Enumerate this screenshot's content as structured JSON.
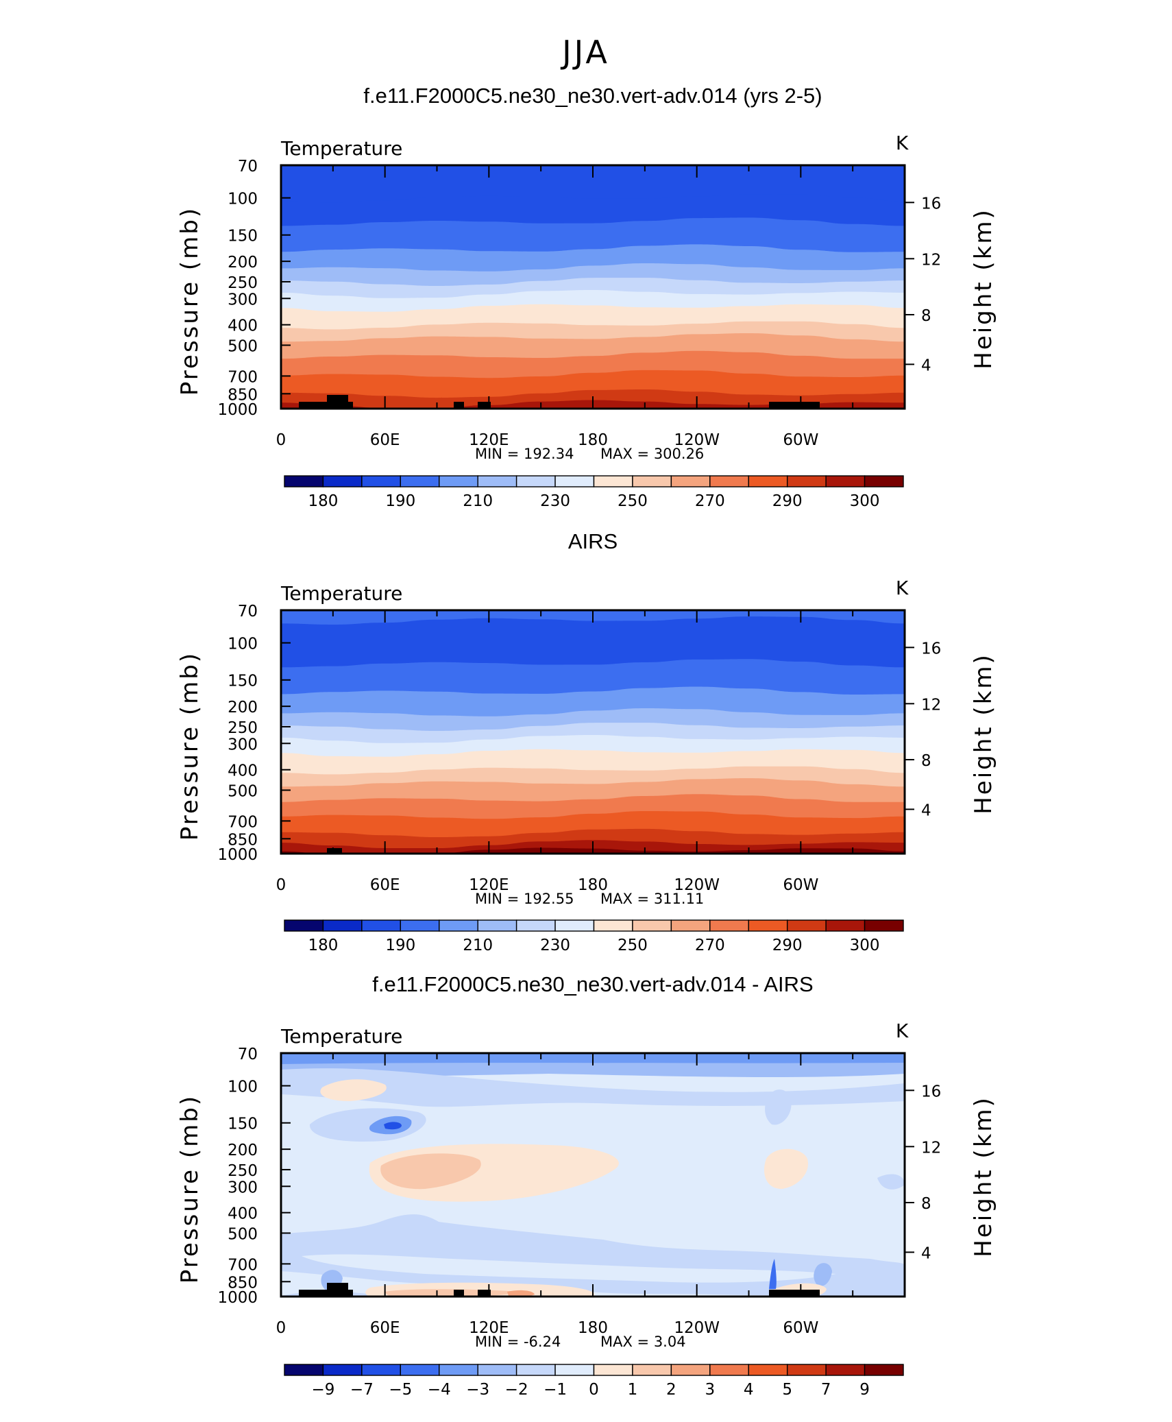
{
  "figure": {
    "season": "JJA"
  },
  "levels": [
    "70",
    "100",
    "150",
    "200",
    "250",
    "300",
    "400",
    "500",
    "700",
    "850",
    "1000"
  ],
  "height_ticks": [
    "16",
    "12",
    "8",
    "4"
  ],
  "lon_ticks": [
    "0",
    "60E",
    "120E",
    "180",
    "120W",
    "60W"
  ],
  "chart_data": [
    {
      "type": "heatmap",
      "title": "f.e11.F2000C5.ne30_ne30.vert-adv.014 (yrs 2-5)",
      "variable": "Temperature",
      "units": "K",
      "ylabel": "Pressure (mb)",
      "y2label": "Height (km)",
      "x": "longitude 0-360",
      "min_label": "MIN = 192.34",
      "max_label": "MAX = 300.26",
      "min": 192.34,
      "max": 300.26,
      "colorbar": [
        "180",
        "190",
        "210",
        "230",
        "250",
        "270",
        "290",
        "300"
      ],
      "colors": [
        "#05056e",
        "#0a2ac8",
        "#2150e6",
        "#3c6ef0",
        "#6e9bf5",
        "#9ebcf7",
        "#c6d8fa",
        "#e0ecfc",
        "#fce6d4",
        "#f8c8ac",
        "#f4a47e",
        "#f07a4e",
        "#ec5a24",
        "#d03a14",
        "#a8160a",
        "#780000"
      ],
      "profile": [
        {
          "p": "70",
          "c": 2
        },
        {
          "p": "100",
          "c": 2
        },
        {
          "p": "130",
          "c": 3
        },
        {
          "p": "175",
          "c": 4
        },
        {
          "p": "215",
          "c": 5
        },
        {
          "p": "250",
          "c": 6
        },
        {
          "p": "285",
          "c": 7
        },
        {
          "p": "330",
          "c": 8
        },
        {
          "p": "400",
          "c": 9
        },
        {
          "p": "460",
          "c": 10
        },
        {
          "p": "560",
          "c": 11
        },
        {
          "p": "690",
          "c": 12
        },
        {
          "p": "850",
          "c": 13
        },
        {
          "p": "950",
          "c": 14
        }
      ]
    },
    {
      "type": "heatmap",
      "title": "AIRS",
      "variable": "Temperature",
      "units": "K",
      "ylabel": "Pressure (mb)",
      "y2label": "Height (km)",
      "min_label": "MIN = 192.55",
      "max_label": "MAX = 311.11",
      "min": 192.55,
      "max": 311.11,
      "colorbar": [
        "180",
        "190",
        "210",
        "230",
        "250",
        "270",
        "290",
        "300"
      ],
      "colors": [
        "#05056e",
        "#0a2ac8",
        "#2150e6",
        "#3c6ef0",
        "#6e9bf5",
        "#9ebcf7",
        "#c6d8fa",
        "#e0ecfc",
        "#fce6d4",
        "#f8c8ac",
        "#f4a47e",
        "#f07a4e",
        "#ec5a24",
        "#d03a14",
        "#a8160a",
        "#780000"
      ],
      "profile": [
        {
          "p": "70",
          "c": 3
        },
        {
          "p": "78",
          "c": 2
        },
        {
          "p": "125",
          "c": 3
        },
        {
          "p": "170",
          "c": 4
        },
        {
          "p": "215",
          "c": 5
        },
        {
          "p": "250",
          "c": 6
        },
        {
          "p": "285",
          "c": 7
        },
        {
          "p": "330",
          "c": 8
        },
        {
          "p": "400",
          "c": 9
        },
        {
          "p": "460",
          "c": 10
        },
        {
          "p": "550",
          "c": 11
        },
        {
          "p": "660",
          "c": 12
        },
        {
          "p": "800",
          "c": 13
        },
        {
          "p": "900",
          "c": 14
        },
        {
          "p": "970",
          "c": 15
        }
      ]
    },
    {
      "type": "heatmap",
      "title": "f.e11.F2000C5.ne30_ne30.vert-adv.014 - AIRS",
      "variable": "Temperature",
      "units": "K",
      "ylabel": "Pressure (mb)",
      "y2label": "Height (km)",
      "min_label": "MIN = -6.24",
      "max_label": "MAX = 3.04",
      "min": -6.24,
      "max": 3.04,
      "colorbar": [
        "-9",
        "-7",
        "-5",
        "-4",
        "-3",
        "-2",
        "-1",
        "0",
        "1",
        "2",
        "3",
        "4",
        "5",
        "7",
        "9"
      ],
      "colors": [
        "#05056e",
        "#0a2ac8",
        "#2150e6",
        "#3c6ef0",
        "#6e9bf5",
        "#9ebcf7",
        "#c6d8fa",
        "#e0ecfc",
        "#fce6d4",
        "#f8c8ac",
        "#f4a47e",
        "#f07a4e",
        "#ec5a24",
        "#d03a14",
        "#a8160a",
        "#780000"
      ],
      "background_class": 7
    }
  ]
}
